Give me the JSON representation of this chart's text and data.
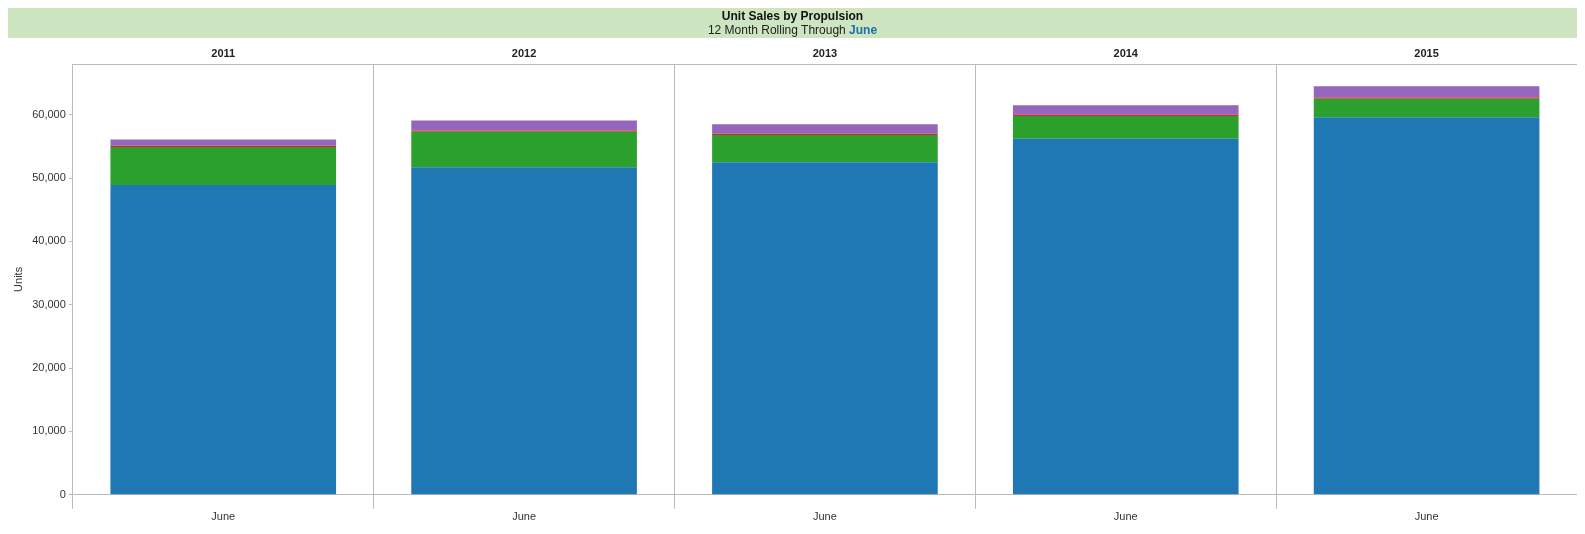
{
  "chart_data": {
    "type": "bar",
    "title": "Unit Sales by Propulsion",
    "subtitle": "12 Month Rolling Through June",
    "ylabel": "Units",
    "annotations": [
      "2011",
      "2012",
      "2013",
      "2014",
      "2015"
    ],
    "categories": [
      "June",
      "June",
      "June",
      "June",
      "June"
    ],
    "stacked": true,
    "ylim": [
      0,
      68000
    ],
    "yticks": [
      0,
      {
        "value": 10000,
        "label": "10,000"
      },
      {
        "value": 20000,
        "label": "20,000"
      },
      {
        "value": 30000,
        "label": "30,000"
      },
      {
        "value": 40000,
        "label": "40,000"
      },
      {
        "value": 50000,
        "label": "50,000"
      },
      {
        "value": 60000,
        "label": "60,000"
      }
    ],
    "grid": "x",
    "legend": false,
    "series": [
      {
        "color": "#1f77b4",
        "values": [
          48900,
          51700,
          52500,
          56200,
          59600
        ]
      },
      {
        "color": "#2ca02c",
        "values": [
          6000,
          5600,
          4300,
          3600,
          2900
        ]
      },
      {
        "color": "#d62728",
        "values": [
          200,
          200,
          200,
          200,
          200
        ]
      },
      {
        "color": "#9467bd",
        "values": [
          1000,
          1600,
          1500,
          1500,
          1800
        ]
      }
    ]
  }
}
